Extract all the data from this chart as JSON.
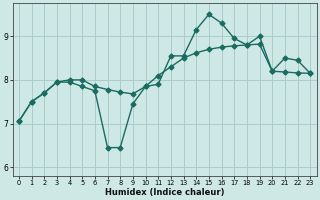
{
  "xlabel": "Humidex (Indice chaleur)",
  "ylabel": "",
  "bg_color": "#cde8e5",
  "grid_color": "#aaccca",
  "line_color": "#1a6b60",
  "xlim": [
    -0.5,
    23.5
  ],
  "ylim": [
    5.8,
    9.75
  ],
  "yticks": [
    6,
    7,
    8,
    9
  ],
  "xticks": [
    0,
    1,
    2,
    3,
    4,
    5,
    6,
    7,
    8,
    9,
    10,
    11,
    12,
    13,
    14,
    15,
    16,
    17,
    18,
    19,
    20,
    21,
    22,
    23
  ],
  "line1_x": [
    0,
    1,
    2,
    3,
    4,
    5,
    6,
    7,
    8,
    9,
    10,
    11,
    12,
    13,
    14,
    15,
    16,
    17,
    18,
    19,
    20,
    21,
    22,
    23
  ],
  "line1_y": [
    7.05,
    7.5,
    7.7,
    7.95,
    7.95,
    7.85,
    7.75,
    6.45,
    6.45,
    7.45,
    7.85,
    7.9,
    8.55,
    8.55,
    9.15,
    9.5,
    9.3,
    8.95,
    8.8,
    9.0,
    8.2,
    8.5,
    8.45,
    8.15
  ],
  "line2_x": [
    0,
    1,
    2,
    3,
    4,
    5,
    6,
    7,
    8,
    9,
    10,
    11,
    12,
    13,
    14,
    15,
    16,
    17,
    18,
    19,
    20,
    21,
    22,
    23
  ],
  "line2_y": [
    7.05,
    7.5,
    7.7,
    7.95,
    8.0,
    8.0,
    7.85,
    7.78,
    7.72,
    7.68,
    7.85,
    8.1,
    8.3,
    8.5,
    8.62,
    8.7,
    8.75,
    8.78,
    8.8,
    8.82,
    8.2,
    8.18,
    8.16,
    8.15
  ],
  "marker": "D",
  "markersize": 2.5,
  "linewidth": 1.0
}
